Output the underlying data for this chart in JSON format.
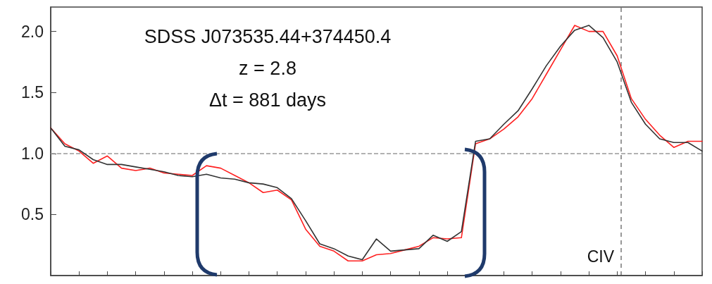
{
  "chart_data": {
    "type": "line",
    "categories": [
      null,
      null,
      null,
      null,
      null,
      null,
      null,
      null,
      null,
      null,
      null,
      null,
      null,
      null,
      null,
      null,
      null,
      null,
      null,
      null,
      null,
      null,
      null,
      null,
      null,
      null,
      null,
      null,
      null,
      null,
      null,
      null,
      null,
      null,
      null,
      null,
      null,
      null,
      null,
      null,
      null,
      null,
      null,
      null,
      null,
      null,
      null
    ],
    "series": [
      {
        "color": "#ff2020",
        "values": [
          1.21,
          1.08,
          1.02,
          0.92,
          0.98,
          0.88,
          0.86,
          0.88,
          0.84,
          0.83,
          0.82,
          0.9,
          0.88,
          0.82,
          0.76,
          0.68,
          0.7,
          0.62,
          0.38,
          0.24,
          0.2,
          0.12,
          0.12,
          0.17,
          0.18,
          0.21,
          0.24,
          0.31,
          0.3,
          0.31,
          1.08,
          1.12,
          1.2,
          1.3,
          1.45,
          1.65,
          1.85,
          2.05,
          2.0,
          2.0,
          1.8,
          1.45,
          1.28,
          1.15,
          1.05,
          1.1,
          1.1
        ]
      },
      {
        "color": "#333333",
        "values": [
          1.21,
          1.06,
          1.03,
          0.95,
          0.91,
          0.91,
          0.89,
          0.87,
          0.85,
          0.82,
          0.81,
          0.83,
          0.8,
          0.79,
          0.76,
          0.75,
          0.72,
          0.63,
          0.45,
          0.26,
          0.22,
          0.16,
          0.13,
          0.3,
          0.2,
          0.21,
          0.22,
          0.33,
          0.28,
          0.36,
          1.1,
          1.12,
          1.24,
          1.35,
          1.53,
          1.72,
          1.88,
          2.01,
          2.05,
          1.95,
          1.75,
          1.42,
          1.24,
          1.12,
          1.09,
          1.09,
          1.02
        ]
      }
    ],
    "ylim": [
      0,
      2.2
    ],
    "yticks": [
      {
        "value": 0.5,
        "label": "0.5"
      },
      {
        "value": 1,
        "label": "1.0"
      },
      {
        "value": 1.5,
        "label": "1.5"
      },
      {
        "value": 2,
        "label": "2.0"
      }
    ],
    "tick_labels": "y",
    "grid": false,
    "marker": "none",
    "line_style": "solid",
    "ref_lines": [
      {
        "axis": "y",
        "value": 1,
        "color": "#999999",
        "line_style": "dashed"
      }
    ],
    "annotations": [
      "SDSS J073535.44+374450.4",
      "z = 2.8",
      "Δt = 881 days",
      "CIV"
    ]
  }
}
